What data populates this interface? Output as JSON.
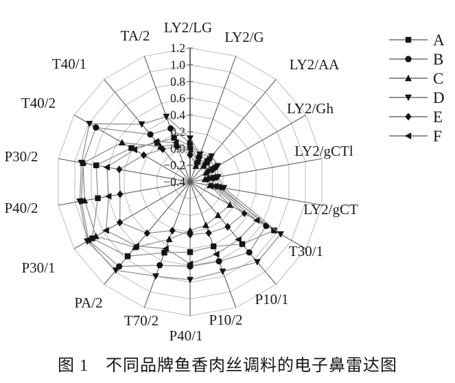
{
  "figure": {
    "caption": "图 1　不同品牌鱼香肉丝调料的电子鼻雷达图"
  },
  "chart_data": {
    "type": "radar",
    "polar": true,
    "title": "",
    "categories": [
      "LY2/LG",
      "LY2/G",
      "LY2/AA",
      "LY2/Gh",
      "LY2/gCTl",
      "LY2/gCT",
      "T30/1",
      "P10/1",
      "P10/2",
      "P40/1",
      "T70/2",
      "PA/2",
      "P30/1",
      "P40/2",
      "P30/2",
      "T40/2",
      "T40/1",
      "TA/2"
    ],
    "start_angle_deg": 90,
    "direction": "clockwise",
    "radial_axis": {
      "min": -0.4,
      "max": 1.2,
      "step": 0.2,
      "tick_labels": [
        "1.2",
        "1.0",
        "0.8",
        "0.6",
        "0.4",
        "0.2",
        "0.0",
        "−0.2",
        "−0.4"
      ]
    },
    "grid": true,
    "legend_position": "top-right",
    "series": [
      {
        "name": "A",
        "marker": "square",
        "values": [
          0.03,
          -0.12,
          -0.08,
          -0.1,
          -0.13,
          -0.07,
          0.76,
          0.57,
          0.42,
          0.44,
          0.5,
          0.76,
          0.95,
          0.72,
          0.74,
          0.41,
          0.21,
          0.16
        ]
      },
      {
        "name": "B",
        "marker": "circle",
        "values": [
          0.07,
          -0.08,
          -0.04,
          -0.06,
          -0.09,
          -0.03,
          0.65,
          0.7,
          0.61,
          0.61,
          0.66,
          0.92,
          1.0,
          0.92,
          0.9,
          0.9,
          0.34,
          0.28
        ]
      },
      {
        "name": "C",
        "marker": "triangle-up",
        "values": [
          -0.05,
          -0.2,
          -0.15,
          -0.18,
          -0.22,
          -0.16,
          0.15,
          0.12,
          0.15,
          0.18,
          0.33,
          0.62,
          0.9,
          0.88,
          0.9,
          0.54,
          0.15,
          0.08
        ]
      },
      {
        "name": "D",
        "marker": "triangle-down",
        "values": [
          0.12,
          -0.05,
          0.0,
          -0.02,
          -0.06,
          0.01,
          0.85,
          0.85,
          0.74,
          0.77,
          0.8,
          0.98,
          1.02,
          0.94,
          0.92,
          0.99,
          0.5,
          0.43
        ]
      },
      {
        "name": "E",
        "marker": "diamond",
        "values": [
          -0.08,
          -0.17,
          -0.12,
          -0.15,
          -0.18,
          -0.13,
          0.35,
          0.3,
          0.25,
          0.23,
          0.22,
          0.4,
          0.57,
          0.45,
          0.46,
          0.24,
          0.11,
          0.05
        ]
      },
      {
        "name": "F",
        "marker": "triangle-left",
        "values": [
          -0.01,
          -0.14,
          -0.1,
          -0.12,
          -0.15,
          -0.1,
          0.52,
          0.5,
          0.52,
          0.58,
          0.45,
          0.6,
          0.76,
          0.59,
          0.61,
          0.37,
          0.23,
          0.1
        ]
      }
    ],
    "colors": {
      "series_line": "#8f8f8f",
      "marker": "#141414",
      "grid_ring": "#b9b9b9",
      "spoke": "#5a5a5a",
      "text": "#1a1a1a"
    }
  }
}
